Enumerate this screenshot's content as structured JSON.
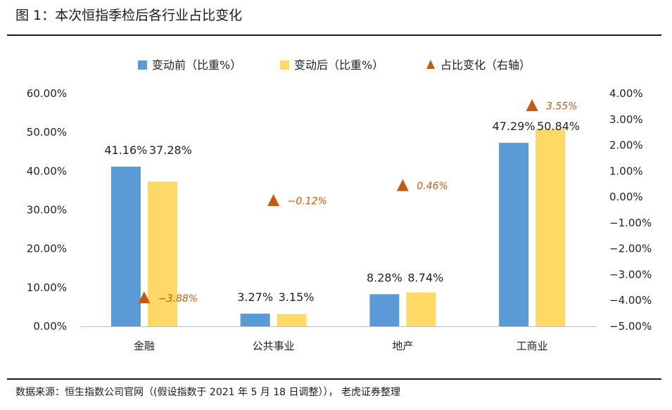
{
  "figure": {
    "title": "图 1：本次恒指季检后各行业占比变化",
    "source": "数据来源：恒生指数公司官网（(假设指数于 2021 年 5 月 18 日调整））， 老虎证券整理"
  },
  "chart_data": {
    "type": "bar",
    "categories": [
      "金融",
      "公共事业",
      "地产",
      "工商业"
    ],
    "series": [
      {
        "name": "变动前（比重%）",
        "kind": "bar",
        "axis": "left",
        "color": "#5B9BD5",
        "values": [
          41.16,
          3.27,
          8.28,
          47.29
        ],
        "labels": [
          "41.16%",
          "3.27%",
          "8.28%",
          "47.29%"
        ]
      },
      {
        "name": "变动后（比重%）",
        "kind": "bar",
        "axis": "left",
        "color": "#FFD966",
        "values": [
          37.28,
          3.15,
          8.74,
          50.84
        ],
        "labels": [
          "37.28%",
          "3.15%",
          "8.74%",
          "50.84%"
        ]
      },
      {
        "name": "占比变化（右轴）",
        "kind": "marker-triangle",
        "axis": "right",
        "color": "#C55A11",
        "values": [
          -3.88,
          -0.12,
          0.46,
          3.55
        ],
        "labels": [
          "−3.88%",
          "−0.12%",
          "0.46%",
          "3.55%"
        ]
      }
    ],
    "left_axis": {
      "ylim": [
        0,
        60
      ],
      "ticks": [
        0,
        10,
        20,
        30,
        40,
        50,
        60
      ],
      "tick_labels": [
        "0.00%",
        "10.00%",
        "20.00%",
        "30.00%",
        "40.00%",
        "50.00%",
        "60.00%"
      ]
    },
    "right_axis": {
      "ylim": [
        -5,
        4
      ],
      "ticks": [
        4,
        3,
        2,
        1,
        0,
        -1,
        -2,
        -3,
        -4,
        -5
      ],
      "tick_labels": [
        "4.00%",
        "3.00%",
        "2.00%",
        "1.00%",
        "0.00%",
        "−1.00%",
        "−2.00%",
        "−3.00%",
        "−4.00%",
        "−5.00%"
      ]
    },
    "legend_position": "top",
    "grid": false
  }
}
